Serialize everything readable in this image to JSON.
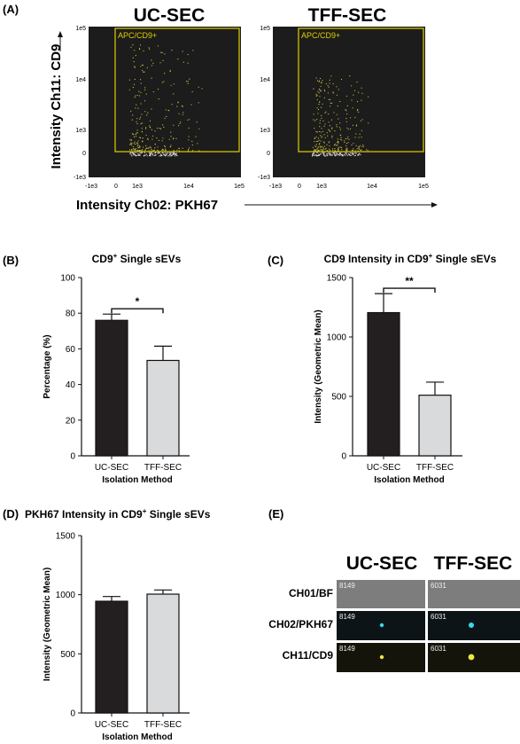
{
  "panels": {
    "a": "(A)",
    "b": "(B)",
    "c": "(C)",
    "d": "(D)",
    "e": "(E)"
  },
  "chart_data": [
    {
      "type": "scatter",
      "panel": "(A)",
      "ylabel": "Intensity Ch11: CD9",
      "xlabel": "Intensity Ch02: PKH67",
      "xticks": [
        "-1e3",
        "0",
        "1e3",
        "1e4",
        "1e5"
      ],
      "yticks": [
        "1e5",
        "1e4",
        "1e3",
        "0",
        "-1e3"
      ],
      "gate_label": "APC/CD9+",
      "plots": [
        {
          "title": "UC-SEC"
        },
        {
          "title": "TFF-SEC"
        }
      ],
      "colors": {
        "background": "#1c1c1c",
        "gate": "#e0d000",
        "points_in_gate": "#c8c040",
        "points_out": "#d8d8d8"
      }
    },
    {
      "type": "bar",
      "panel": "(B)",
      "title": "CD9",
      "title_sup": "+",
      "title_rest": " Single sEVs",
      "categories": [
        "UC-SEC",
        "TFF-SEC"
      ],
      "values": [
        76,
        53.5
      ],
      "errors": [
        3.5,
        8
      ],
      "ylim": [
        0,
        100
      ],
      "yticks": [
        "0",
        "20",
        "40",
        "60",
        "80",
        "100"
      ],
      "ylabel": "Percentage (%)",
      "xlabel": "Isolation Method",
      "significance": "*",
      "colors": [
        "#231f20",
        "#d9dadb"
      ]
    },
    {
      "type": "bar",
      "panel": "(C)",
      "title": "CD9 Intensity in CD9",
      "title_sup": "+",
      "title_rest": " Single sEVs",
      "categories": [
        "UC-SEC",
        "TFF-SEC"
      ],
      "values": [
        1205,
        510
      ],
      "errors": [
        160,
        110
      ],
      "ylim": [
        0,
        1500
      ],
      "yticks": [
        "0",
        "500",
        "1000",
        "1500"
      ],
      "ylabel": "Intensity (Geometric Mean)",
      "xlabel": "Isolation Method",
      "significance": "**",
      "colors": [
        "#231f20",
        "#d9dadb"
      ]
    },
    {
      "type": "bar",
      "panel": "(D)",
      "title": "PKH67 Intensity in CD9",
      "title_sup": "+",
      "title_rest": " Single sEVs",
      "categories": [
        "UC-SEC",
        "TFF-SEC"
      ],
      "values": [
        945,
        1005
      ],
      "errors": [
        40,
        35
      ],
      "ylim": [
        0,
        1500
      ],
      "yticks": [
        "0",
        "500",
        "1000",
        "1500"
      ],
      "ylabel": "Intensity (Geometric Mean)",
      "xlabel": "Isolation Method",
      "significance": "",
      "colors": [
        "#231f20",
        "#d9dadb"
      ]
    }
  ],
  "images": {
    "columns": [
      "UC-SEC",
      "TFF-SEC"
    ],
    "rows": [
      "CH01/BF",
      "CH02/PKH67",
      "CH11/CD9"
    ],
    "ids": [
      "8149",
      "6031"
    ]
  }
}
